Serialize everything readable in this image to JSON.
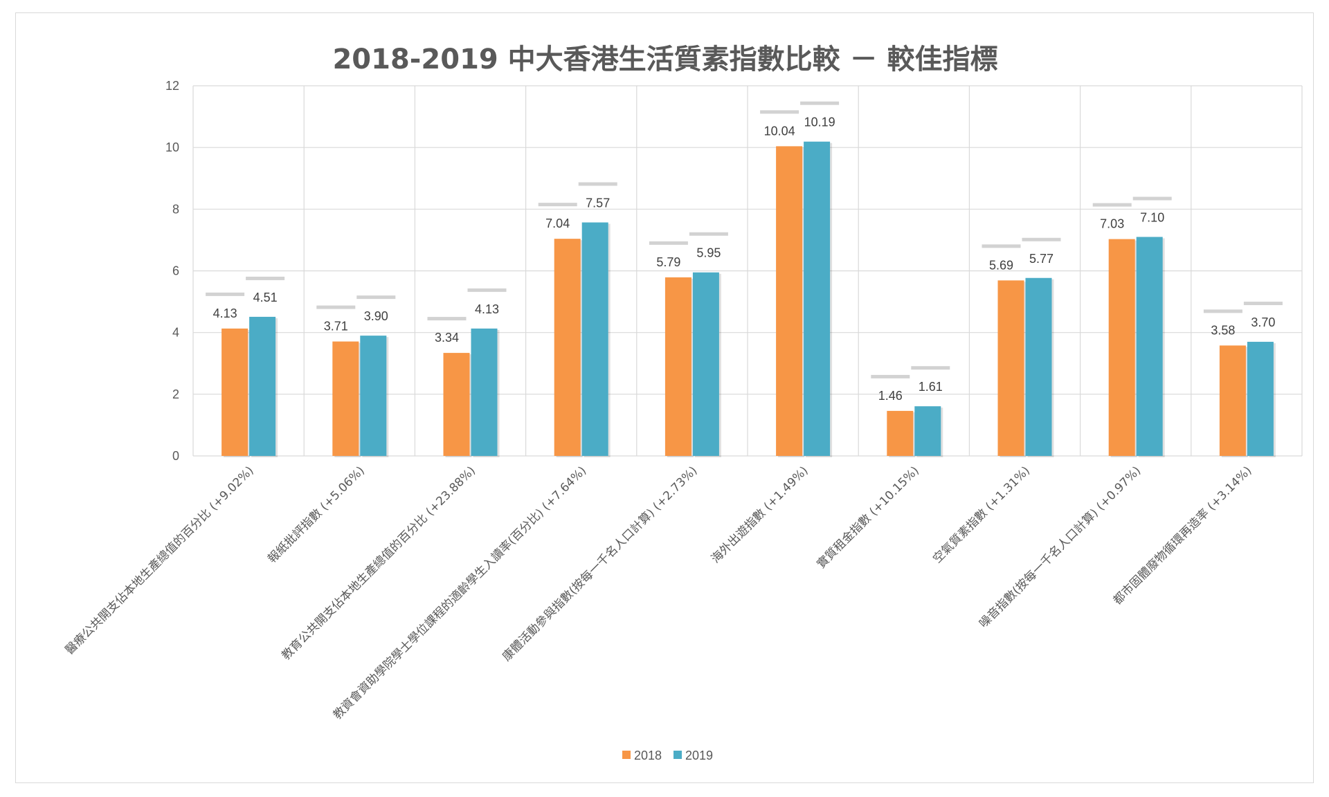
{
  "chart_data": {
    "type": "bar",
    "title": "2018-2019 中大香港生活質素指數比較 － 較佳指標",
    "xlabel": "",
    "ylabel": "",
    "ylim": [
      0,
      12
    ],
    "yticks": [
      0,
      2,
      4,
      6,
      8,
      10,
      12
    ],
    "grid": true,
    "legend_position": "bottom",
    "categories": [
      "醫療公共開支佔本地生產總值的百分比 (+9.02%)",
      "報紙批評指數 (+5.06%)",
      "教育公共開支佔本地生產總值的百分比 (+23.88%)",
      "教資會資助學院學士學位課程的適齡學生入讀率(百分比) (+7.64%)",
      "康體活動參與指數(按每一千名人口計算) (+2.73%)",
      "海外出遊指數 (+1.49%)",
      "實質租金指數 (+10.15%)",
      "空氣質素指數 (+1.31%)",
      "噪音指數(按每一千名人口計算) (+0.97%)",
      "都市固體廢物循環再造率 (+3.14%)"
    ],
    "series": [
      {
        "name": "2018",
        "color": "#F79646",
        "values": [
          4.13,
          3.71,
          3.34,
          7.04,
          5.79,
          10.04,
          1.46,
          5.69,
          7.03,
          3.58
        ],
        "labels": [
          "4.13",
          "3.71",
          "3.34",
          "7.04",
          "5.79",
          "10.04",
          "1.46",
          "5.69",
          "7.03",
          "3.58"
        ]
      },
      {
        "name": "2019",
        "color": "#4BACC6",
        "values": [
          4.51,
          3.9,
          4.13,
          7.57,
          5.95,
          10.19,
          1.61,
          5.77,
          7.1,
          3.7
        ],
        "labels": [
          "4.51",
          "3.90",
          "4.13",
          "7.57",
          "5.95",
          "10.19",
          "1.61",
          "5.77",
          "7.10",
          "3.70"
        ]
      }
    ]
  }
}
